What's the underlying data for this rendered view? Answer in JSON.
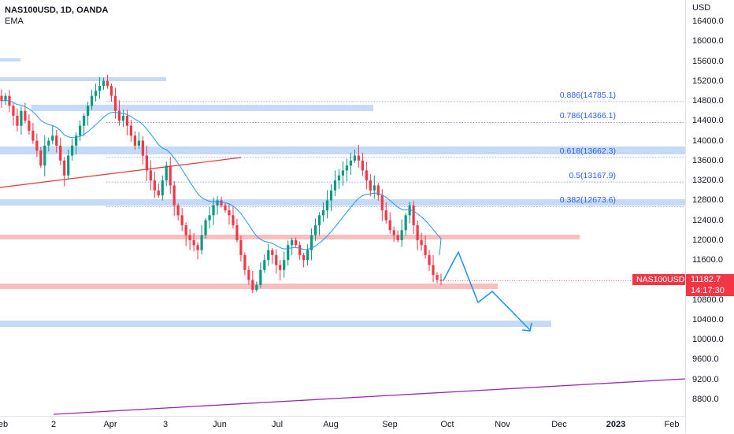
{
  "header": {
    "symbol_line": "NAS100USD, 1D, OANDA",
    "indicator": "EMA"
  },
  "price_axis": {
    "currency": "USD",
    "labels": [
      "16400.0",
      "16000.0",
      "15600.0",
      "15200.0",
      "14800.0",
      "14400.0",
      "14000.0",
      "13600.0",
      "13200.0",
      "12800.0",
      "12400.0",
      "12000.0",
      "11600.0",
      "10800.0",
      "10400.0",
      "10000.0",
      "9600.0",
      "9200.0",
      "8800.0"
    ],
    "last_price": "11182.7",
    "countdown": "14:17:30"
  },
  "symbol_tag": "NAS100USD",
  "time_axis": [
    {
      "label": "eb",
      "bold": false
    },
    {
      "label": "2",
      "bold": false
    },
    {
      "label": "Apr",
      "bold": false
    },
    {
      "label": "3",
      "bold": false
    },
    {
      "label": "Jun",
      "bold": false
    },
    {
      "label": "Jul",
      "bold": false
    },
    {
      "label": "Aug",
      "bold": false
    },
    {
      "label": "Sep",
      "bold": false
    },
    {
      "label": "Oct",
      "bold": false
    },
    {
      "label": "Nov",
      "bold": false
    },
    {
      "label": "Dec",
      "bold": false
    },
    {
      "label": "2023",
      "bold": true
    },
    {
      "label": "Feb",
      "bold": false
    }
  ],
  "fib_levels": [
    {
      "label": "0.886(14785.1)",
      "price": 14785.1
    },
    {
      "label": "0.786(14366.1)",
      "price": 14366.1
    },
    {
      "label": "0.618(13662.3)",
      "price": 13662.3
    },
    {
      "label": "0.5(13167.9)",
      "price": 13167.9
    },
    {
      "label": "0.382(12673.6)",
      "price": 12673.6
    }
  ],
  "colors": {
    "up": "#089981",
    "down": "#f23645",
    "ema": "#2196f3",
    "zone_blue": "#bbd3f5",
    "zone_red": "#f8b4b4",
    "trend_red": "#e53935",
    "trend_purple": "#9c27b0",
    "projection": "#2196f3"
  },
  "chart_data": {
    "type": "candlestick",
    "ylim": [
      8600,
      16600
    ],
    "close_series": [
      14800,
      14900,
      14700,
      14500,
      14300,
      14600,
      14400,
      14200,
      14000,
      13800,
      13500,
      13900,
      14000,
      14100,
      13900,
      13600,
      13300,
      13700,
      13900,
      14100,
      14300,
      14500,
      14700,
      14900,
      15000,
      15100,
      15200,
      15100,
      14900,
      14600,
      14400,
      14500,
      14300,
      14100,
      13900,
      14000,
      13700,
      13400,
      13200,
      13000,
      12900,
      13200,
      13500,
      13100,
      12700,
      12500,
      12300,
      12100,
      12000,
      11900,
      11800,
      12100,
      12400,
      12500,
      12700,
      12800,
      12700,
      12600,
      12500,
      12300,
      12000,
      11700,
      11400,
      11200,
      11000,
      11100,
      11400,
      11600,
      11800,
      11700,
      11500,
      11400,
      11600,
      11900,
      12000,
      11900,
      11700,
      11600,
      11800,
      12100,
      12300,
      12500,
      12600,
      12800,
      13000,
      13200,
      13300,
      13400,
      13500,
      13600,
      13700,
      13600,
      13400,
      13200,
      13000,
      13100,
      12900,
      12600,
      12400,
      12200,
      12100,
      12000,
      12200,
      12500,
      12700,
      12300,
      12000,
      11900,
      11700,
      11500,
      11300,
      11200,
      11180
    ]
  }
}
